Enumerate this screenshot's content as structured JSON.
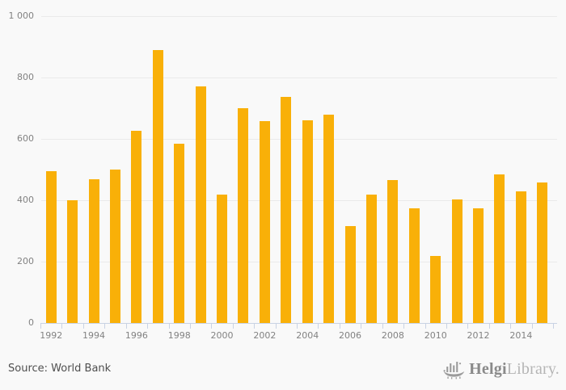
{
  "chart_data": {
    "type": "bar",
    "title": "",
    "categories": [
      "1992",
      "1993",
      "1994",
      "1995",
      "1996",
      "1997",
      "1998",
      "1999",
      "2000",
      "2001",
      "2002",
      "2003",
      "2004",
      "2005",
      "2006",
      "2007",
      "2008",
      "2009",
      "2010",
      "2011",
      "2012",
      "2013",
      "2014",
      "2015"
    ],
    "values": [
      495,
      400,
      468,
      500,
      625,
      890,
      585,
      770,
      418,
      700,
      658,
      738,
      660,
      678,
      317,
      418,
      465,
      374,
      218,
      403,
      374,
      484,
      428,
      458
    ],
    "xlabel": "",
    "ylabel": "",
    "ylim": [
      0,
      1000
    ],
    "yticks": [
      0,
      200,
      400,
      600,
      800,
      1000
    ],
    "ytick_labels": [
      "0",
      "200",
      "400",
      "600",
      "800",
      "1 000"
    ],
    "xtick_labels": [
      "1992",
      "1994",
      "1996",
      "1998",
      "2000",
      "2002",
      "2004",
      "2006",
      "2008",
      "2010",
      "2012",
      "2014"
    ],
    "grid": true,
    "legend_position": "none",
    "bar_color": "#f9b008",
    "axis_color": "#c9d3e4",
    "grid_color": "#eaeaea",
    "background_color": "#f9f9f9"
  },
  "footer": {
    "source": "Source: World Bank"
  },
  "logo": {
    "icon": "viking-ship-icon",
    "primary": "Helgi",
    "secondary": "Library."
  }
}
